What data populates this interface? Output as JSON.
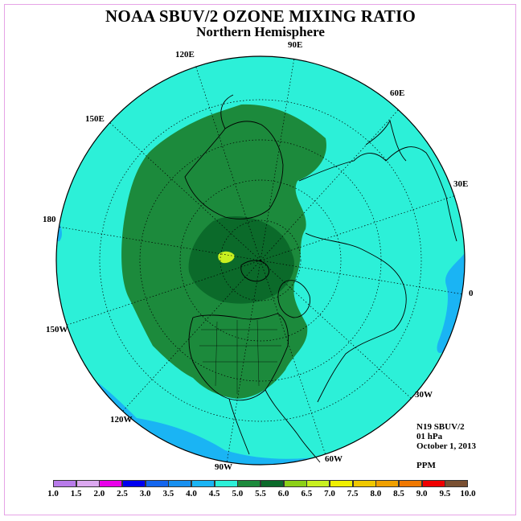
{
  "title": "NOAA SBUV/2 OZONE MIXING RATIO",
  "subtitle": "Northern Hemisphere",
  "longitude_labels": [
    "90E",
    "60E",
    "30E",
    "0",
    "30W",
    "60W",
    "90W",
    "120W",
    "150W",
    "180",
    "150E",
    "120E"
  ],
  "info": {
    "instrument": "N19 SBUV/2",
    "level": "01 hPa",
    "date": "October 1, 2013",
    "units": "PPM"
  },
  "colorbar": {
    "ticks": [
      "1.0",
      "1.5",
      "2.0",
      "2.5",
      "3.0",
      "3.5",
      "4.0",
      "4.5",
      "5.0",
      "5.5",
      "6.0",
      "6.5",
      "7.0",
      "7.5",
      "8.0",
      "8.5",
      "9.0",
      "9.5",
      "10.0"
    ],
    "colors": [
      "#b87bea",
      "#dca8f0",
      "#ea00ea",
      "#0000f0",
      "#1466ee",
      "#1890f0",
      "#1ab4f4",
      "#2cf0d8",
      "#1c8a3c",
      "#0b6a2a",
      "#8cd018",
      "#c8f020",
      "#f0f000",
      "#f0c800",
      "#f0a000",
      "#f07800",
      "#f00000",
      "#7a5032"
    ]
  },
  "map_colors": {
    "background": "#2cf0d8",
    "low": "#1ab4f4",
    "mid": "#1c8a3c",
    "high": "#0b6a2a",
    "peak": "#c8f020"
  }
}
